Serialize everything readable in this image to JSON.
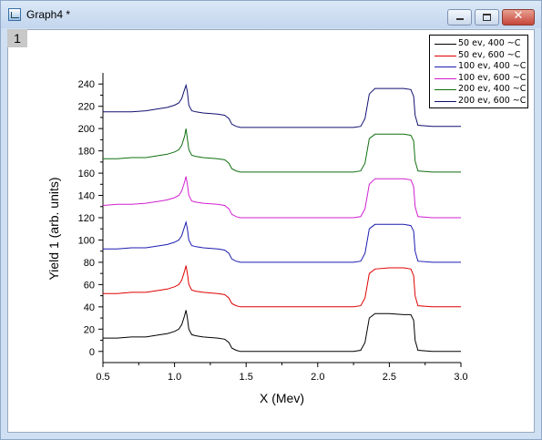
{
  "window": {
    "title": "Graph4 *",
    "layer_label": "1"
  },
  "chart_data": {
    "type": "line",
    "xlabel": "X (Mev)",
    "ylabel": "Yield 1 (arb. units)",
    "xlim": [
      0.5,
      3.0
    ],
    "ylim": [
      -10,
      250
    ],
    "xticks": [
      "0.5",
      "1.0",
      "1.5",
      "2.0",
      "2.5",
      "3.0"
    ],
    "yticks": [
      "0",
      "20",
      "40",
      "60",
      "80",
      "100",
      "120",
      "140",
      "160",
      "180",
      "200",
      "220",
      "240"
    ],
    "grid": false,
    "legend_position": "top-right",
    "x": [
      0.5,
      0.6,
      0.7,
      0.8,
      0.9,
      0.95,
      1.0,
      1.03,
      1.05,
      1.07,
      1.08,
      1.09,
      1.1,
      1.12,
      1.15,
      1.2,
      1.3,
      1.35,
      1.38,
      1.4,
      1.43,
      1.46,
      1.5,
      1.7,
      1.9,
      2.1,
      2.25,
      2.3,
      2.33,
      2.36,
      2.4,
      2.5,
      2.6,
      2.65,
      2.67,
      2.68,
      2.7,
      2.8,
      2.9,
      3.0
    ],
    "series": [
      {
        "name": "50 ev, 400 ~C",
        "color": "#000000",
        "values": [
          12,
          12,
          13,
          13,
          15,
          16,
          18,
          20,
          24,
          32,
          37,
          30,
          20,
          15,
          14,
          13,
          12,
          11,
          8,
          3,
          1,
          0,
          0,
          0,
          0,
          0,
          0,
          1,
          8,
          30,
          34,
          34,
          33,
          33,
          28,
          10,
          1,
          0,
          0,
          0
        ]
      },
      {
        "name": "50 ev, 600 ~C",
        "color": "#e00000",
        "values": [
          52,
          52,
          53,
          53,
          55,
          56,
          58,
          60,
          64,
          72,
          77,
          70,
          60,
          55,
          54,
          53,
          52,
          51,
          48,
          43,
          41,
          40,
          40,
          40,
          40,
          40,
          40,
          41,
          48,
          70,
          74,
          75,
          75,
          74,
          68,
          50,
          41,
          40,
          40,
          40
        ]
      },
      {
        "name": "100 ev, 400 ~C",
        "color": "#1c1cb0",
        "values": [
          92,
          92,
          93,
          93,
          95,
          96,
          98,
          100,
          104,
          112,
          116,
          110,
          100,
          95,
          94,
          93,
          92,
          91,
          88,
          83,
          81,
          80,
          80,
          80,
          80,
          80,
          80,
          81,
          88,
          110,
          114,
          114,
          114,
          113,
          108,
          90,
          81,
          80,
          80,
          80
        ]
      },
      {
        "name": "100 ev, 600 ~C",
        "color": "#d020d0",
        "values": [
          131,
          132,
          132,
          133,
          135,
          136,
          138,
          140,
          144,
          152,
          157,
          150,
          140,
          135,
          134,
          133,
          132,
          131,
          128,
          123,
          121,
          120,
          120,
          120,
          120,
          120,
          120,
          121,
          128,
          150,
          155,
          155,
          155,
          154,
          148,
          130,
          121,
          120,
          120,
          120
        ]
      },
      {
        "name": "200 ev, 400 ~C",
        "color": "#107010",
        "values": [
          173,
          173,
          174,
          174,
          176,
          177,
          179,
          181,
          185,
          193,
          200,
          191,
          181,
          176,
          175,
          174,
          173,
          172,
          169,
          164,
          162,
          161,
          161,
          161,
          161,
          161,
          161,
          162,
          169,
          191,
          195,
          195,
          195,
          194,
          189,
          171,
          162,
          161,
          161,
          161
        ]
      },
      {
        "name": "200 ev, 600 ~C",
        "color": "#101070",
        "values": [
          215,
          215,
          215,
          216,
          218,
          219,
          221,
          223,
          227,
          235,
          239,
          233,
          221,
          216,
          215,
          214,
          213,
          212,
          209,
          204,
          202,
          201,
          201,
          201,
          201,
          201,
          201,
          202,
          209,
          231,
          236,
          236,
          236,
          235,
          229,
          212,
          203,
          202,
          202,
          202
        ]
      }
    ]
  }
}
